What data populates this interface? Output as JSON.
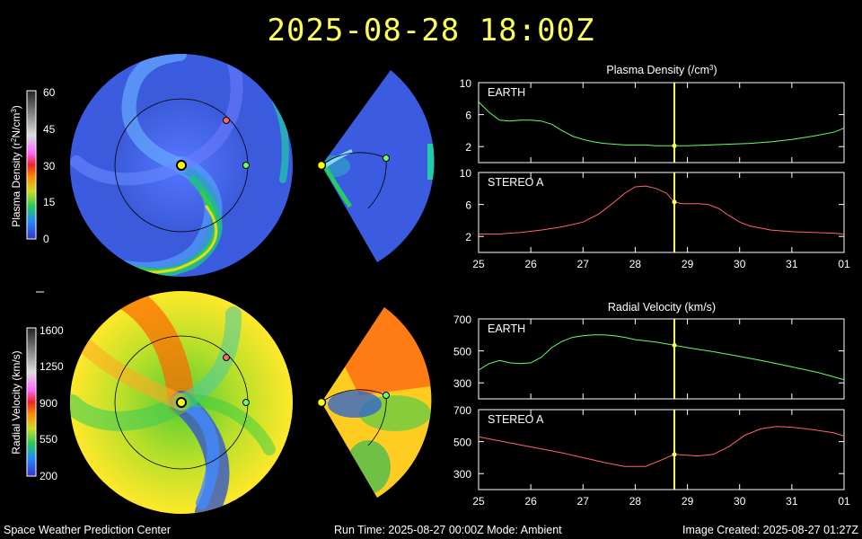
{
  "header": {
    "timestamp": "2025-08-28 18:00Z"
  },
  "footer": {
    "left": "Space Weather Prediction Center",
    "center": "Run Time: 2025-08-27 00:00Z  Mode: Ambient",
    "right": "Image Created: 2025-08-27 01:27Z"
  },
  "colors": {
    "earth": "#66ff66",
    "stereo_a": "#ff6666",
    "time_marker": "#ffff55",
    "sun": "#ffff00"
  },
  "density_colorbar": {
    "label_parts": [
      "Plasma Density (r",
      "2",
      "N/cm",
      "3",
      ")"
    ],
    "ticks": [
      "60",
      "45",
      "30",
      "15",
      "0"
    ]
  },
  "velocity_colorbar": {
    "label": "Radial Velocity (km/s)",
    "ticks": [
      "1600",
      "1250",
      "900",
      "550",
      "200"
    ]
  },
  "chart_data": [
    {
      "type": "line",
      "title": "Plasma Density (/cm",
      "title_sup": "3",
      "title_close": ")",
      "xticks": [
        "25",
        "26",
        "27",
        "28",
        "29",
        "30",
        "31",
        "01"
      ],
      "xlim": [
        25,
        32
      ],
      "current_time": 28.75,
      "panels": [
        {
          "label": "EARTH",
          "ylim": [
            0,
            10
          ],
          "yticks": [
            "10",
            "6",
            "2"
          ],
          "color": "#66ff66",
          "x": [
            25,
            25.2,
            25.4,
            25.6,
            25.8,
            26,
            26.2,
            26.4,
            26.6,
            26.8,
            27,
            27.2,
            27.4,
            27.6,
            27.8,
            28,
            28.2,
            28.4,
            28.6,
            28.8,
            29,
            29.4,
            29.8,
            30.2,
            30.6,
            31,
            31.4,
            31.8,
            32
          ],
          "values": [
            7.6,
            6.3,
            5.3,
            5.2,
            5.3,
            5.3,
            5.2,
            4.8,
            4.0,
            3.3,
            2.9,
            2.6,
            2.4,
            2.3,
            2.2,
            2.2,
            2.2,
            2.1,
            2.1,
            2.1,
            2.1,
            2.2,
            2.3,
            2.4,
            2.6,
            2.9,
            3.3,
            3.8,
            4.3
          ]
        },
        {
          "label": "STEREO A",
          "ylim": [
            0,
            10
          ],
          "yticks": [
            "10",
            "6",
            "2"
          ],
          "color": "#ff6666",
          "x": [
            25,
            25.4,
            25.8,
            26.2,
            26.6,
            27,
            27.3,
            27.6,
            27.8,
            28,
            28.2,
            28.4,
            28.6,
            28.75,
            28.9,
            29.2,
            29.4,
            29.6,
            29.8,
            30,
            30.2,
            30.6,
            31,
            31.4,
            31.8,
            32
          ],
          "values": [
            2.3,
            2.3,
            2.5,
            2.8,
            3.2,
            3.8,
            4.8,
            6.3,
            7.4,
            8.2,
            8.3,
            8.0,
            7.4,
            6.3,
            6.1,
            6.1,
            6.0,
            5.5,
            4.6,
            3.8,
            3.3,
            2.8,
            2.6,
            2.5,
            2.4,
            2.3
          ]
        }
      ]
    },
    {
      "type": "line",
      "title": "Radial Velocity (km/s)",
      "xticks": [
        "25",
        "26",
        "27",
        "28",
        "29",
        "30",
        "31",
        "01"
      ],
      "xlim": [
        25,
        32
      ],
      "current_time": 28.75,
      "panels": [
        {
          "label": "EARTH",
          "ylim": [
            200,
            700
          ],
          "yticks": [
            "700",
            "500",
            "300"
          ],
          "color": "#66ff66",
          "x": [
            25,
            25.2,
            25.4,
            25.6,
            25.8,
            26,
            26.2,
            26.4,
            26.6,
            26.8,
            27,
            27.2,
            27.4,
            27.6,
            27.8,
            28,
            28.4,
            28.75,
            29,
            29.5,
            30,
            30.5,
            31,
            31.5,
            32
          ],
          "values": [
            380,
            420,
            440,
            425,
            420,
            425,
            460,
            520,
            560,
            585,
            595,
            600,
            600,
            595,
            585,
            570,
            555,
            535,
            520,
            495,
            465,
            435,
            400,
            365,
            320
          ]
        },
        {
          "label": "STEREO A",
          "ylim": [
            200,
            700
          ],
          "yticks": [
            "700",
            "500",
            "300"
          ],
          "color": "#ff6666",
          "x": [
            25,
            25.4,
            25.8,
            26.2,
            26.6,
            27,
            27.4,
            27.8,
            28.2,
            28.5,
            28.75,
            29,
            29.2,
            29.5,
            29.8,
            30.1,
            30.4,
            30.7,
            31,
            31.4,
            31.8,
            32
          ],
          "values": [
            530,
            505,
            480,
            455,
            430,
            400,
            370,
            345,
            345,
            385,
            420,
            415,
            410,
            420,
            470,
            540,
            580,
            595,
            590,
            575,
            555,
            535
          ]
        }
      ]
    }
  ]
}
